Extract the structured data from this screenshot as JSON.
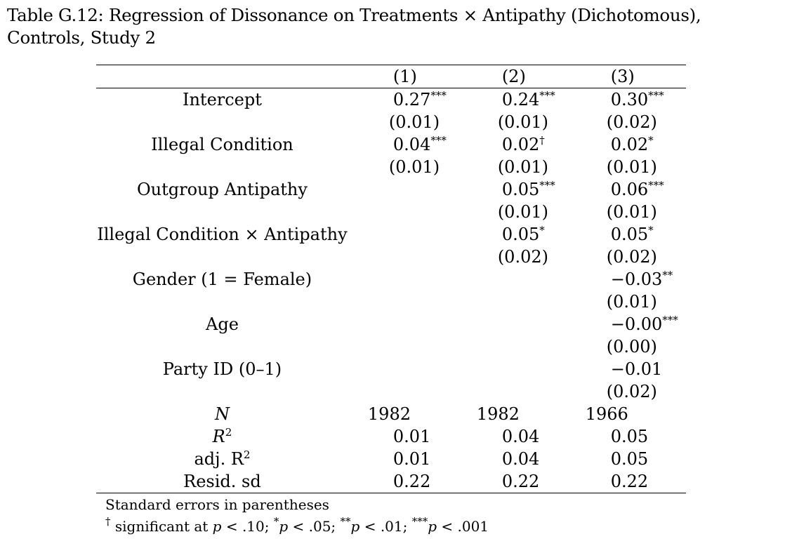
{
  "caption": "Table G.12: Regression of Dissonance on Treatments × Antipathy (Dichotomous), Controls, Study 2",
  "headers": [
    "",
    "(1)",
    "(2)",
    "(3)"
  ],
  "rows": [
    {
      "label": "Intercept",
      "v1": "0.27",
      "s1": "***",
      "v2": "0.24",
      "s2": "***",
      "v3": "0.30",
      "s3": "***"
    },
    {
      "label": "",
      "v1": "(0.01)",
      "s1": "",
      "v2": "(0.01)",
      "s2": "",
      "v3": "(0.02)",
      "s3": ""
    },
    {
      "label": "Illegal Condition",
      "v1": "0.04",
      "s1": "***",
      "v2": "0.02",
      "s2": "†",
      "v3": "0.02",
      "s3": "*"
    },
    {
      "label": "",
      "v1": "(0.01)",
      "s1": "",
      "v2": "(0.01)",
      "s2": "",
      "v3": "(0.01)",
      "s3": ""
    },
    {
      "label": "Outgroup Antipathy",
      "v1": "",
      "s1": "",
      "v2": "0.05",
      "s2": "***",
      "v3": "0.06",
      "s3": "***"
    },
    {
      "label": "",
      "v1": "",
      "s1": "",
      "v2": "(0.01)",
      "s2": "",
      "v3": "(0.01)",
      "s3": ""
    },
    {
      "label": "Illegal Condition × Antipathy",
      "v1": "",
      "s1": "",
      "v2": "0.05",
      "s2": "*",
      "v3": "0.05",
      "s3": "*"
    },
    {
      "label": "",
      "v1": "",
      "s1": "",
      "v2": "(0.02)",
      "s2": "",
      "v3": "(0.02)",
      "s3": ""
    },
    {
      "label": "Gender (1 = Female)",
      "v1": "",
      "s1": "",
      "v2": "",
      "s2": "",
      "v3": "−0.03",
      "s3": "**"
    },
    {
      "label": "",
      "v1": "",
      "s1": "",
      "v2": "",
      "s2": "",
      "v3": "(0.01)",
      "s3": ""
    },
    {
      "label": "Age",
      "v1": "",
      "s1": "",
      "v2": "",
      "s2": "",
      "v3": "−0.00",
      "s3": "***"
    },
    {
      "label": "",
      "v1": "",
      "s1": "",
      "v2": "",
      "s2": "",
      "v3": "(0.00)",
      "s3": ""
    },
    {
      "label": "Party ID (0–1)",
      "v1": "",
      "s1": "",
      "v2": "",
      "s2": "",
      "v3": "−0.01",
      "s3": ""
    },
    {
      "label": "",
      "v1": "",
      "s1": "",
      "v2": "",
      "s2": "",
      "v3": "(0.02)",
      "s3": ""
    }
  ],
  "stats": [
    {
      "label_main": "N",
      "label_sup": "",
      "italic": true,
      "v1": "1982",
      "v2": "1982",
      "v3": "1966",
      "shift": "left"
    },
    {
      "label_main": "R",
      "label_sup": "2",
      "italic": true,
      "v1": "0.01",
      "v2": "0.04",
      "v3": "0.05",
      "shift": ""
    },
    {
      "label_main": "adj. R",
      "label_sup": "2",
      "italic": false,
      "v1": "0.01",
      "v2": "0.04",
      "v3": "0.05",
      "shift": ""
    },
    {
      "label_main": "Resid. sd",
      "label_sup": "",
      "italic": false,
      "v1": "0.22",
      "v2": "0.22",
      "v3": "0.22",
      "shift": ""
    }
  ],
  "notes": {
    "line1": "Standard errors in parentheses",
    "line2_dagger": "†",
    "line2_text1": " significant at ",
    "line2_p": "p",
    "line2_text2": " < .10; ",
    "line2_s1": "*",
    "line2_text3": " < .05; ",
    "line2_s2": "**",
    "line2_text4": " < .01; ",
    "line2_s3": "***",
    "line2_text5": " < .001"
  }
}
